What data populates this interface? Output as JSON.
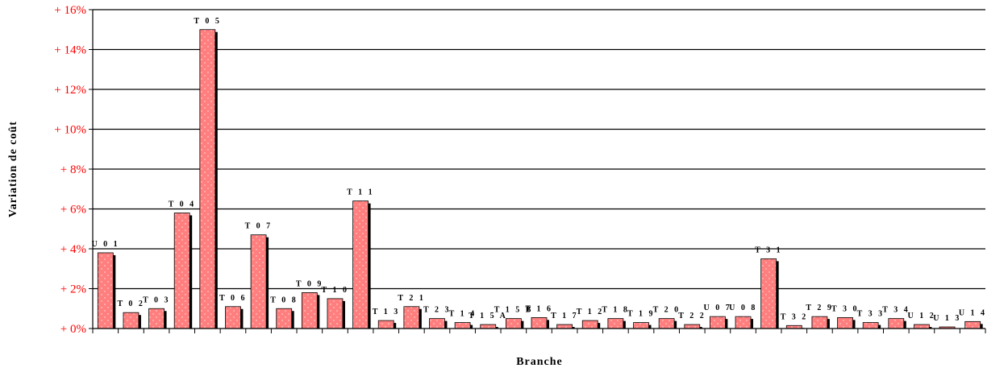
{
  "chart_data": {
    "type": "bar",
    "title": "",
    "xlabel": "Branche",
    "ylabel": "Variation de coût",
    "ylim": [
      0,
      16
    ],
    "yticks": [
      0,
      2,
      4,
      6,
      8,
      10,
      12,
      14,
      16
    ],
    "ytick_labels": [
      "+ 0%",
      "+ 2%",
      "+ 4%",
      "+ 6%",
      "+ 8%",
      "+ 10%",
      "+ 12%",
      "+ 14%",
      "+ 16%"
    ],
    "grid": true,
    "categories": [
      "U01",
      "T02",
      "T03",
      "T04",
      "T05",
      "T06",
      "T07",
      "T08",
      "T09",
      "T10",
      "T11",
      "T13",
      "T21",
      "T23",
      "T14",
      "T15A",
      "T15B",
      "T16",
      "T17",
      "T12",
      "T18",
      "T19",
      "T20",
      "T22",
      "U07",
      "U08",
      "T31",
      "T32",
      "T29",
      "T30",
      "T33",
      "T34",
      "U12",
      "U13",
      "U14"
    ],
    "category_labels": [
      "U 0 1",
      "T 0 2",
      "T 0 3",
      "T 0 4",
      "T 0 5",
      "T 0 6",
      "T 0 7",
      "T 0 8",
      "T 0 9",
      "T 1 0",
      "T 1 1",
      "T 1 3",
      "T 2 1",
      "T 2 3",
      "T 1 4",
      "T 1 5 A",
      "T 1 5 B",
      "T 1 6",
      "T 1 7",
      "T 1 2",
      "T 1 8",
      "T 1 9",
      "T 2 0",
      "T 2 2",
      "U 0 7",
      "U 0 8",
      "T 3 1",
      "T 3 2",
      "T 2 9",
      "T 3 0",
      "T 3 3",
      "T 3 4",
      "U 1 2",
      "U 1 3",
      "U 1 4"
    ],
    "values": [
      3.8,
      0.8,
      1.0,
      5.8,
      15.0,
      1.1,
      4.7,
      1.0,
      1.8,
      1.5,
      6.4,
      0.4,
      1.1,
      0.5,
      0.3,
      0.2,
      0.5,
      0.55,
      0.2,
      0.4,
      0.5,
      0.3,
      0.5,
      0.2,
      0.6,
      0.6,
      3.5,
      0.15,
      0.6,
      0.55,
      0.3,
      0.5,
      0.2,
      0.08,
      0.35
    ],
    "colors": {
      "bar": "#ff7f7f",
      "shadow": "#000000",
      "tick_label": "#ff0000",
      "grid": "#000000"
    }
  }
}
